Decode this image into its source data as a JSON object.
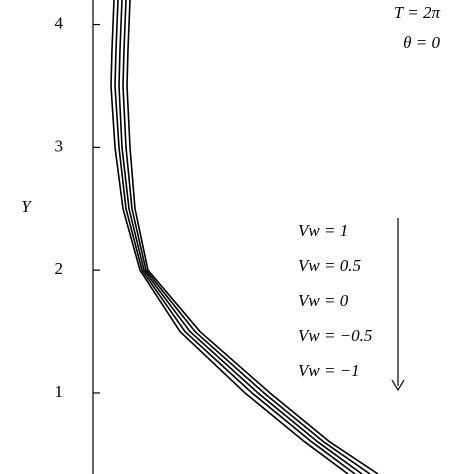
{
  "chart_data": {
    "type": "line",
    "y_label": "Y",
    "annotations": [
      "T = 2π",
      "θ = 0"
    ],
    "ylim": [
      0.34,
      4.2
    ],
    "yticks": [
      1,
      2,
      3,
      4
    ],
    "xlim": [
      0,
      377
    ],
    "series": [
      {
        "name": "Vw = 1",
        "color": "#000000",
        "values": [
          4.2,
          3.8,
          3.5,
          3.0,
          2.5,
          2.0,
          1.5,
          1.0,
          0.6,
          0.34
        ],
        "x": [
          21,
          19,
          18,
          22,
          30,
          47,
          87,
          152,
          212,
          255
        ]
      },
      {
        "name": "Vw = 0.5",
        "color": "#000000",
        "values": [
          4.2,
          3.8,
          3.5,
          3.0,
          2.5,
          2.0,
          1.5,
          1.0,
          0.6,
          0.34
        ],
        "x": [
          25,
          23,
          22,
          26,
          33,
          49,
          92,
          159,
          219,
          262
        ]
      },
      {
        "name": "Vw = 0",
        "color": "#000000",
        "values": [
          4.2,
          3.8,
          3.5,
          3.0,
          2.5,
          2.0,
          1.5,
          1.0,
          0.6,
          0.34
        ],
        "x": [
          29,
          27,
          26,
          29,
          36,
          51,
          97,
          165,
          225,
          269
        ]
      },
      {
        "name": "Vw = −0.5",
        "color": "#000000",
        "values": [
          4.2,
          3.8,
          3.5,
          3.0,
          2.5,
          2.0,
          1.5,
          1.0,
          0.6,
          0.34
        ],
        "x": [
          33,
          31,
          30,
          33,
          39,
          53,
          102,
          171,
          231,
          277
        ]
      },
      {
        "name": "Vw = −1",
        "color": "#000000",
        "values": [
          4.2,
          3.8,
          3.5,
          3.0,
          2.5,
          2.0,
          1.5,
          1.0,
          0.6,
          0.34
        ],
        "x": [
          37,
          35,
          34,
          37,
          42,
          55,
          107,
          177,
          237,
          285
        ]
      }
    ]
  }
}
